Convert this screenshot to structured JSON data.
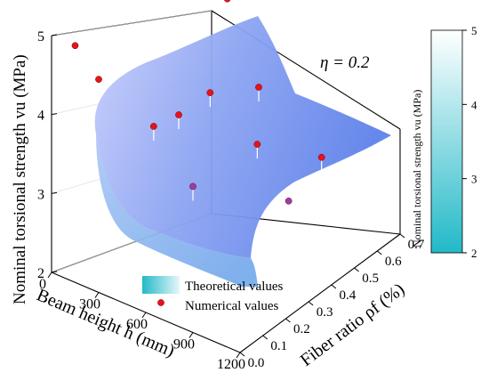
{
  "chart_data": {
    "type": "surface3d",
    "annotation": "η = 0.2",
    "axes": {
      "x": {
        "label": "Beam height h (mm)",
        "ticks": [
          "0",
          "300",
          "600",
          "900",
          "1200"
        ],
        "range": [
          0,
          1200
        ]
      },
      "y": {
        "label": "Fiber ratio ρf (%)",
        "ticks": [
          "0.0",
          "0.1",
          "0.2",
          "0.3",
          "0.4",
          "0.5",
          "0.6",
          "0.7"
        ],
        "range": [
          0,
          0.7
        ]
      },
      "z": {
        "label": "Nominal torsional strength vu (MPa)",
        "ticks": [
          "2",
          "3",
          "4",
          "5"
        ],
        "range": [
          2,
          5
        ]
      }
    },
    "colorbar": {
      "label": "Nominal torsional strength vu (MPa)",
      "ticks": [
        "2",
        "3",
        "4",
        "5"
      ],
      "range": [
        2,
        5
      ],
      "colors": [
        "#22b9c8",
        "#ffffff"
      ]
    },
    "legend": {
      "position": "bottom-center",
      "entries": [
        {
          "label": "Theoretical values",
          "kind": "surface"
        },
        {
          "label": "Numerical values",
          "kind": "point"
        }
      ]
    },
    "surface": {
      "series_name": "Theoretical values",
      "h": [
        100,
        300,
        500,
        700,
        900,
        1100
      ],
      "rho": [
        0.0,
        0.7
      ],
      "vu": [
        [
          3.95,
          4.75
        ],
        [
          3.35,
          4.25
        ],
        [
          2.95,
          3.9
        ],
        [
          2.6,
          3.6
        ],
        [
          2.35,
          3.4
        ],
        [
          2.1,
          3.2
        ]
      ]
    },
    "points": {
      "series_name": "Numerical values",
      "items": [
        {
          "h": 100,
          "rho": 0.0,
          "vu": 4.05,
          "color": "#e8121b"
        },
        {
          "h": 150,
          "rho": 0.7,
          "vu": 5.0,
          "color": "#e8121b"
        },
        {
          "h": 300,
          "rho": 0.0,
          "vu": 3.1,
          "color": "#e8121b"
        },
        {
          "h": 300,
          "rho": 0.35,
          "vu": 3.5,
          "color": "#e8121b"
        },
        {
          "h": 300,
          "rho": 0.7,
          "vu": 4.7,
          "color": "#e8121b"
        },
        {
          "h": 500,
          "rho": 0.35,
          "vu": 3.95,
          "color": "#e8121b"
        },
        {
          "h": 650,
          "rho": 0.7,
          "vu": 4.4,
          "color": "#e8121b"
        },
        {
          "h": 700,
          "rho": 0.0,
          "vu": 2.55,
          "color": "#e8121b"
        },
        {
          "h": 800,
          "rho": 0.35,
          "vu": 3.55,
          "color": "#e8121b"
        },
        {
          "h": 900,
          "rho": 0.7,
          "vu": 3.85,
          "color": "#9a3fa8"
        },
        {
          "h": 1000,
          "rho": 0.35,
          "vu": 3.0,
          "color": "#9a3fa8"
        }
      ]
    }
  }
}
